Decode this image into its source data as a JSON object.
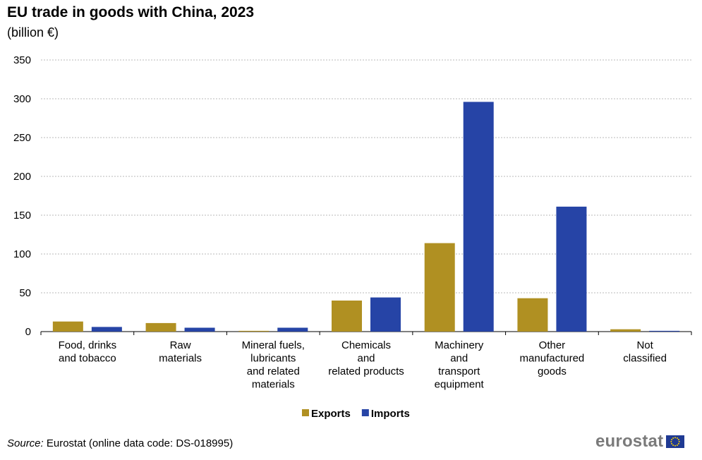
{
  "title": "EU trade in goods with China, 2023",
  "subtitle": "(billion €)",
  "source_label": "Source:",
  "source_text": " Eurostat (online data code: DS-018995)",
  "logo_text": "eurostat",
  "chart_data": {
    "type": "bar",
    "title": "EU trade in goods with China, 2023",
    "subtitle": "(billion €)",
    "xlabel": "",
    "ylabel": "",
    "ylim": [
      0,
      350
    ],
    "yticks": [
      0,
      50,
      100,
      150,
      200,
      250,
      300,
      350
    ],
    "grid": true,
    "legend_position": "bottom",
    "categories": [
      [
        "Food, drinks",
        "and tobacco"
      ],
      [
        "Raw",
        "materials"
      ],
      [
        "Mineral fuels,",
        "lubricants",
        "and related",
        "materials"
      ],
      [
        "Chemicals",
        "and",
        "related products"
      ],
      [
        "Machinery",
        "and",
        "transport",
        "equipment"
      ],
      [
        "Other",
        "manufactured",
        "goods"
      ],
      [
        "Not",
        "classified"
      ]
    ],
    "series": [
      {
        "name": "Exports",
        "color": "#b09022",
        "values": [
          13,
          11,
          1,
          40,
          114,
          43,
          3
        ]
      },
      {
        "name": "Imports",
        "color": "#2644a6",
        "values": [
          6,
          5,
          5,
          44,
          296,
          161,
          1
        ]
      }
    ]
  }
}
